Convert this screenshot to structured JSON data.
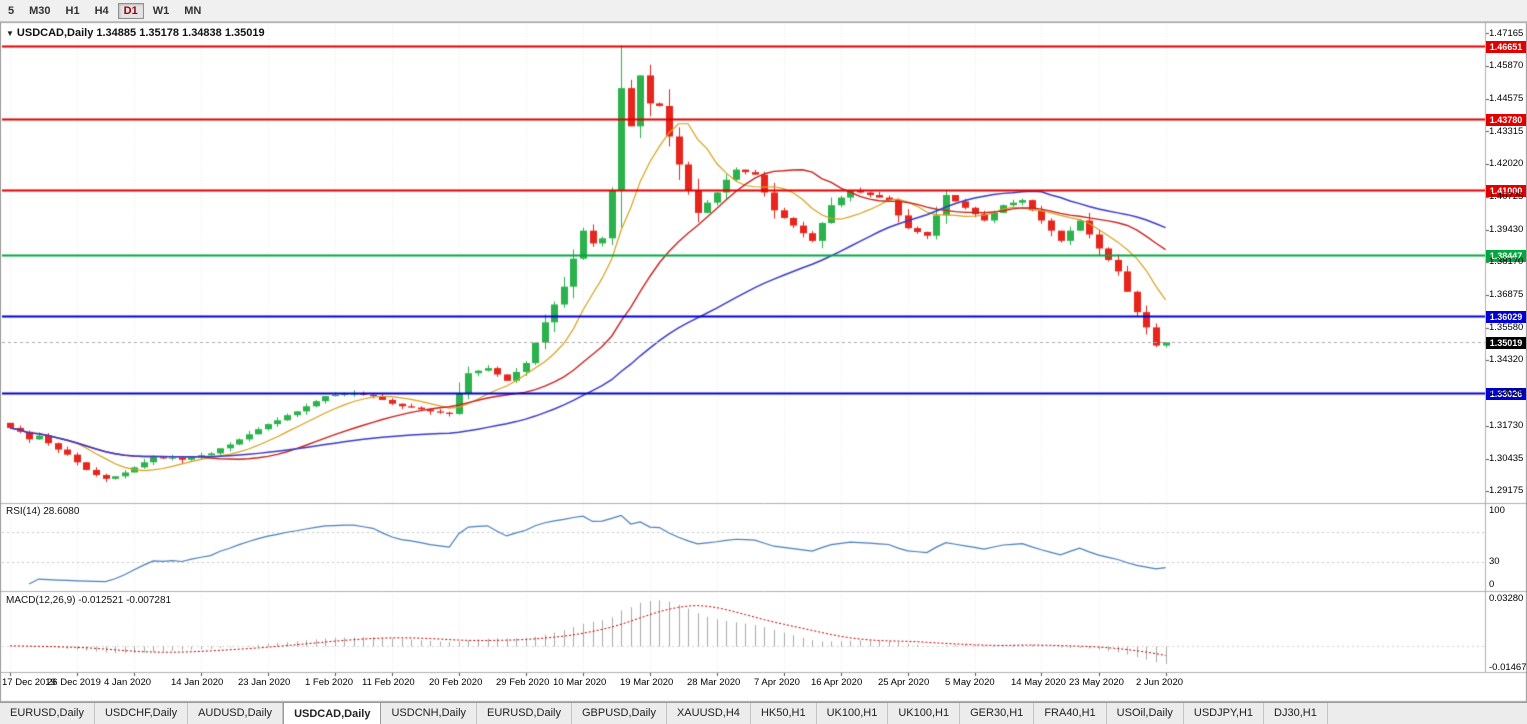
{
  "toolbar": {
    "timeframes": [
      "5",
      "M30",
      "H1",
      "H4",
      "D1",
      "W1",
      "MN"
    ],
    "active": "D1"
  },
  "chart": {
    "title": "USDCAD,Daily 1.34885 1.35178 1.34838 1.35019"
  },
  "chart_data": {
    "type": "candlestick",
    "symbol": "USDCAD",
    "timeframe": "Daily",
    "ohlc_display": {
      "open": 1.34885,
      "high": 1.35178,
      "low": 1.34838,
      "close": 1.35019
    },
    "closes": [
      1.3165,
      1.315,
      1.312,
      1.3135,
      1.3105,
      1.308,
      1.306,
      1.303,
      1.3,
      1.298,
      1.2965,
      1.2975,
      1.299,
      1.301,
      1.303,
      1.305,
      1.3045,
      1.3048,
      1.304,
      1.305,
      1.3058,
      1.3065,
      1.3085,
      1.31,
      1.312,
      1.314,
      1.316,
      1.318,
      1.3195,
      1.3215,
      1.323,
      1.325,
      1.327,
      1.329,
      1.3295,
      1.33,
      1.33,
      1.3295,
      1.329,
      1.3275,
      1.326,
      1.325,
      1.3245,
      1.3238,
      1.323,
      1.3225,
      1.322,
      1.33,
      1.338,
      1.339,
      1.34,
      1.3375,
      1.335,
      1.3385,
      1.342,
      1.35,
      1.358,
      1.365,
      1.372,
      1.383,
      1.394,
      1.389,
      1.391,
      1.41,
      1.45,
      1.435,
      1.455,
      1.444,
      1.443,
      1.431,
      1.42,
      1.41,
      1.401,
      1.405,
      1.409,
      1.414,
      1.418,
      1.417,
      1.416,
      1.409,
      1.402,
      1.399,
      1.396,
      1.393,
      1.39,
      1.397,
      1.404,
      1.407,
      1.41,
      1.409,
      1.408,
      1.407,
      1.406,
      1.4,
      1.395,
      1.3935,
      1.392,
      1.4,
      1.408,
      1.4055,
      1.403,
      1.4005,
      1.398,
      1.401,
      1.404,
      1.405,
      1.406,
      1.402,
      1.398,
      1.394,
      1.39,
      1.394,
      1.398,
      1.3925,
      1.387,
      1.3825,
      1.378,
      1.37,
      1.362,
      1.356,
      1.34885,
      1.35019
    ],
    "ma_periods": {
      "fast": 8,
      "mid": 21,
      "slow": 45
    },
    "colors": {
      "up": "#2bb24c",
      "down": "#e8251c",
      "ma_fast": "#d9a21b",
      "ma_mid": "#c8241f",
      "ma_slow": "#3a3ac8"
    },
    "price_axis": [
      1.47165,
      1.4587,
      1.44575,
      1.43315,
      1.4202,
      1.40725,
      1.3943,
      1.3817,
      1.36875,
      1.3558,
      1.3432,
      1.33025,
      1.3173,
      1.30435,
      1.29175
    ],
    "levels": [
      {
        "value": 1.46651,
        "color": "#e00000"
      },
      {
        "value": 1.4378,
        "color": "#e00000"
      },
      {
        "value": 1.41,
        "color": "#e00000"
      },
      {
        "value": 1.38447,
        "color": "#00a83e"
      },
      {
        "value": 1.36029,
        "color": "#0000d0"
      },
      {
        "value": 1.33026,
        "color": "#0000d0"
      }
    ],
    "current_price": {
      "value": 1.35019,
      "bg": "#000000"
    },
    "x_axis": {
      "labels": [
        "17 Dec 2019",
        "26 Dec 2019",
        "4 Jan 2020",
        "14 Jan 2020",
        "23 Jan 2020",
        "1 Feb 2020",
        "11 Feb 2020",
        "20 Feb 2020",
        "29 Feb 2020",
        "10 Mar 2020",
        "19 Mar 2020",
        "28 Mar 2020",
        "7 Apr 2020",
        "16 Apr 2020",
        "25 Apr 2020",
        "5 May 2020",
        "14 May 2020",
        "23 May 2020",
        "2 Jun 2020"
      ],
      "indices": [
        0,
        7,
        13,
        20,
        27,
        34,
        40,
        47,
        54,
        60,
        67,
        74,
        81,
        87,
        94,
        101,
        108,
        114,
        121
      ]
    },
    "rsi": {
      "label": "RSI(14) 28.6080",
      "period": 14,
      "last": 28.608,
      "levels": [
        70,
        30
      ],
      "axis_labels": [
        100,
        30,
        0
      ],
      "color": "#4a7ebb"
    },
    "macd": {
      "label": "MACD(12,26,9) -0.012521 -0.007281",
      "fast": 12,
      "slow": 26,
      "signal": 9,
      "last": -0.012521,
      "signal_last": -0.007281,
      "axis_labels": [
        "0.03280",
        "-0.01467"
      ],
      "hist_color": "#a9a9a9",
      "signal_color": "#c00000"
    }
  },
  "tabs": {
    "items": [
      "EURUSD,Daily",
      "USDCHF,Daily",
      "AUDUSD,Daily",
      "USDCAD,Daily",
      "USDCNH,Daily",
      "EURUSD,Daily",
      "GBPUSD,Daily",
      "XAUUSD,H4",
      "HK50,H1",
      "UK100,H1",
      "UK100,H1",
      "GER30,H1",
      "FRA40,H1",
      "USOil,Daily",
      "USDJPY,H1",
      "DJ30,H1"
    ],
    "active_index": 3
  }
}
